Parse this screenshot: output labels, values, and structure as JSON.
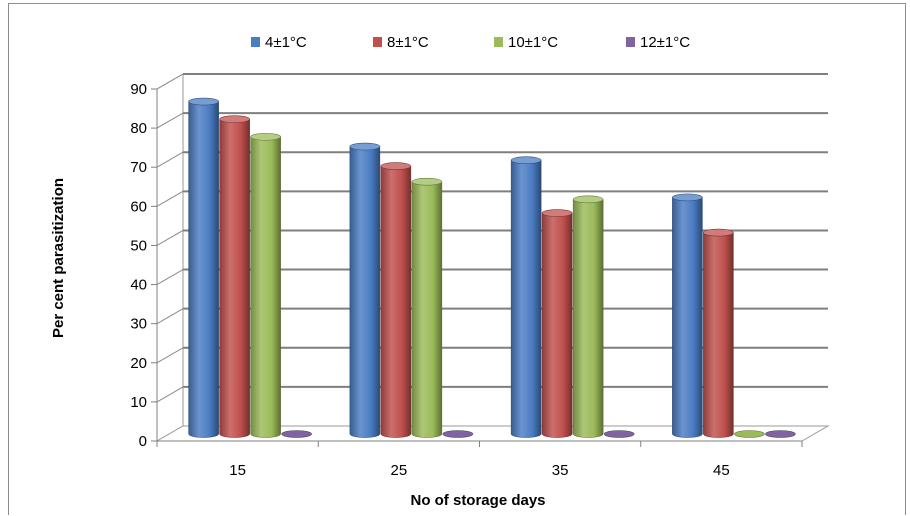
{
  "chart_data": {
    "type": "bar",
    "title": "",
    "xlabel": "No of storage days",
    "ylabel": "Per cent parasitization",
    "categories": [
      "15",
      "25",
      "35",
      "45"
    ],
    "ylim": [
      0,
      90
    ],
    "yticks": [
      "0",
      "10",
      "20",
      "30",
      "40",
      "50",
      "60",
      "70",
      "80",
      "90"
    ],
    "grid": true,
    "legend_position": "top",
    "style": "3d-cylinder",
    "series": [
      {
        "name": "4±1°C",
        "color": "#4a7cc3",
        "values": [
          85,
          73.5,
          70,
          60.5
        ]
      },
      {
        "name": "8±1°C",
        "color": "#c0504d",
        "values": [
          80.5,
          68.5,
          56.5,
          51.5
        ]
      },
      {
        "name": "10±1°C",
        "color": "#9bbb59",
        "values": [
          76,
          64.5,
          60,
          0
        ]
      },
      {
        "name": "12±1°C",
        "color": "#8064a2",
        "values": [
          0,
          0,
          0,
          0
        ]
      }
    ]
  }
}
